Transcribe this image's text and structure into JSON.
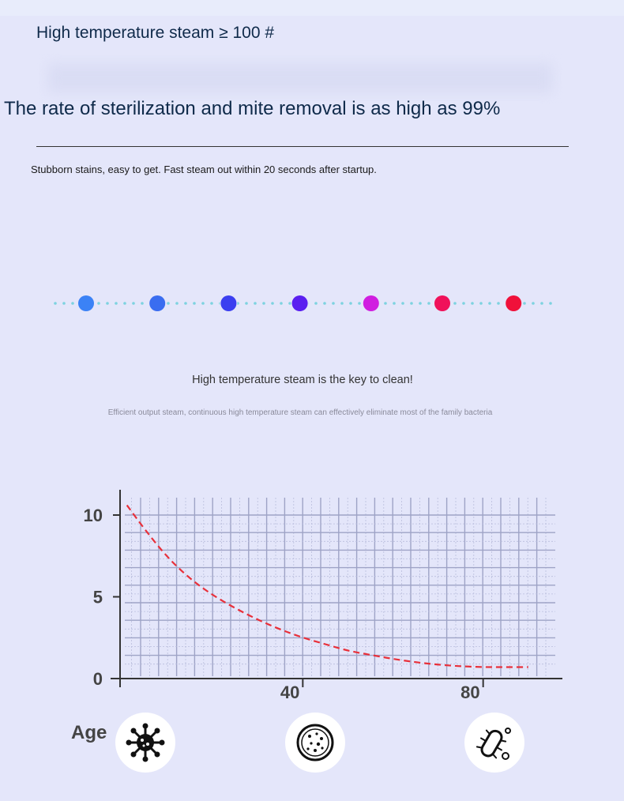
{
  "header": {
    "title": "High temperature steam ≥ 100 #",
    "headline": "The rate of sterilization and mite removal is as high as 99%",
    "subtext": "Stubborn stains, easy to get. Fast steam out within 20 seconds after startup."
  },
  "dots": {
    "colors": [
      "#3b82f6",
      "#3a6df0",
      "#3b3ff0",
      "#5a1ff0",
      "#d01ee0",
      "#f0115a",
      "#f0113a"
    ],
    "dotline_color": "#7dd3e0"
  },
  "middle": {
    "tagline": "High temperature steam is the key to clean!",
    "note": "Efficient output steam, continuous high temperature steam can effectively eliminate most of the family bacteria"
  },
  "chart_data": {
    "type": "line",
    "xlabel": "Age",
    "x_ticks": [
      "40",
      "80"
    ],
    "y_ticks": [
      "0",
      "5",
      "10"
    ],
    "ylim": [
      0,
      10
    ],
    "xlim": [
      0,
      96
    ],
    "grid": true,
    "series": [
      {
        "color": "#e8303a",
        "style": "dashed",
        "x": [
          1,
          5,
          10,
          15,
          20,
          25,
          30,
          35,
          40,
          45,
          50,
          55,
          60,
          65,
          70,
          75,
          80,
          85,
          90
        ],
        "y": [
          10.6,
          9.1,
          7.4,
          6.1,
          5.1,
          4.3,
          3.6,
          3.0,
          2.5,
          2.1,
          1.7,
          1.45,
          1.2,
          1.0,
          0.85,
          0.75,
          0.7,
          0.7,
          0.7
        ]
      }
    ]
  },
  "icons": [
    "virus-icon",
    "bacteria-colony-icon",
    "microbe-icon"
  ]
}
